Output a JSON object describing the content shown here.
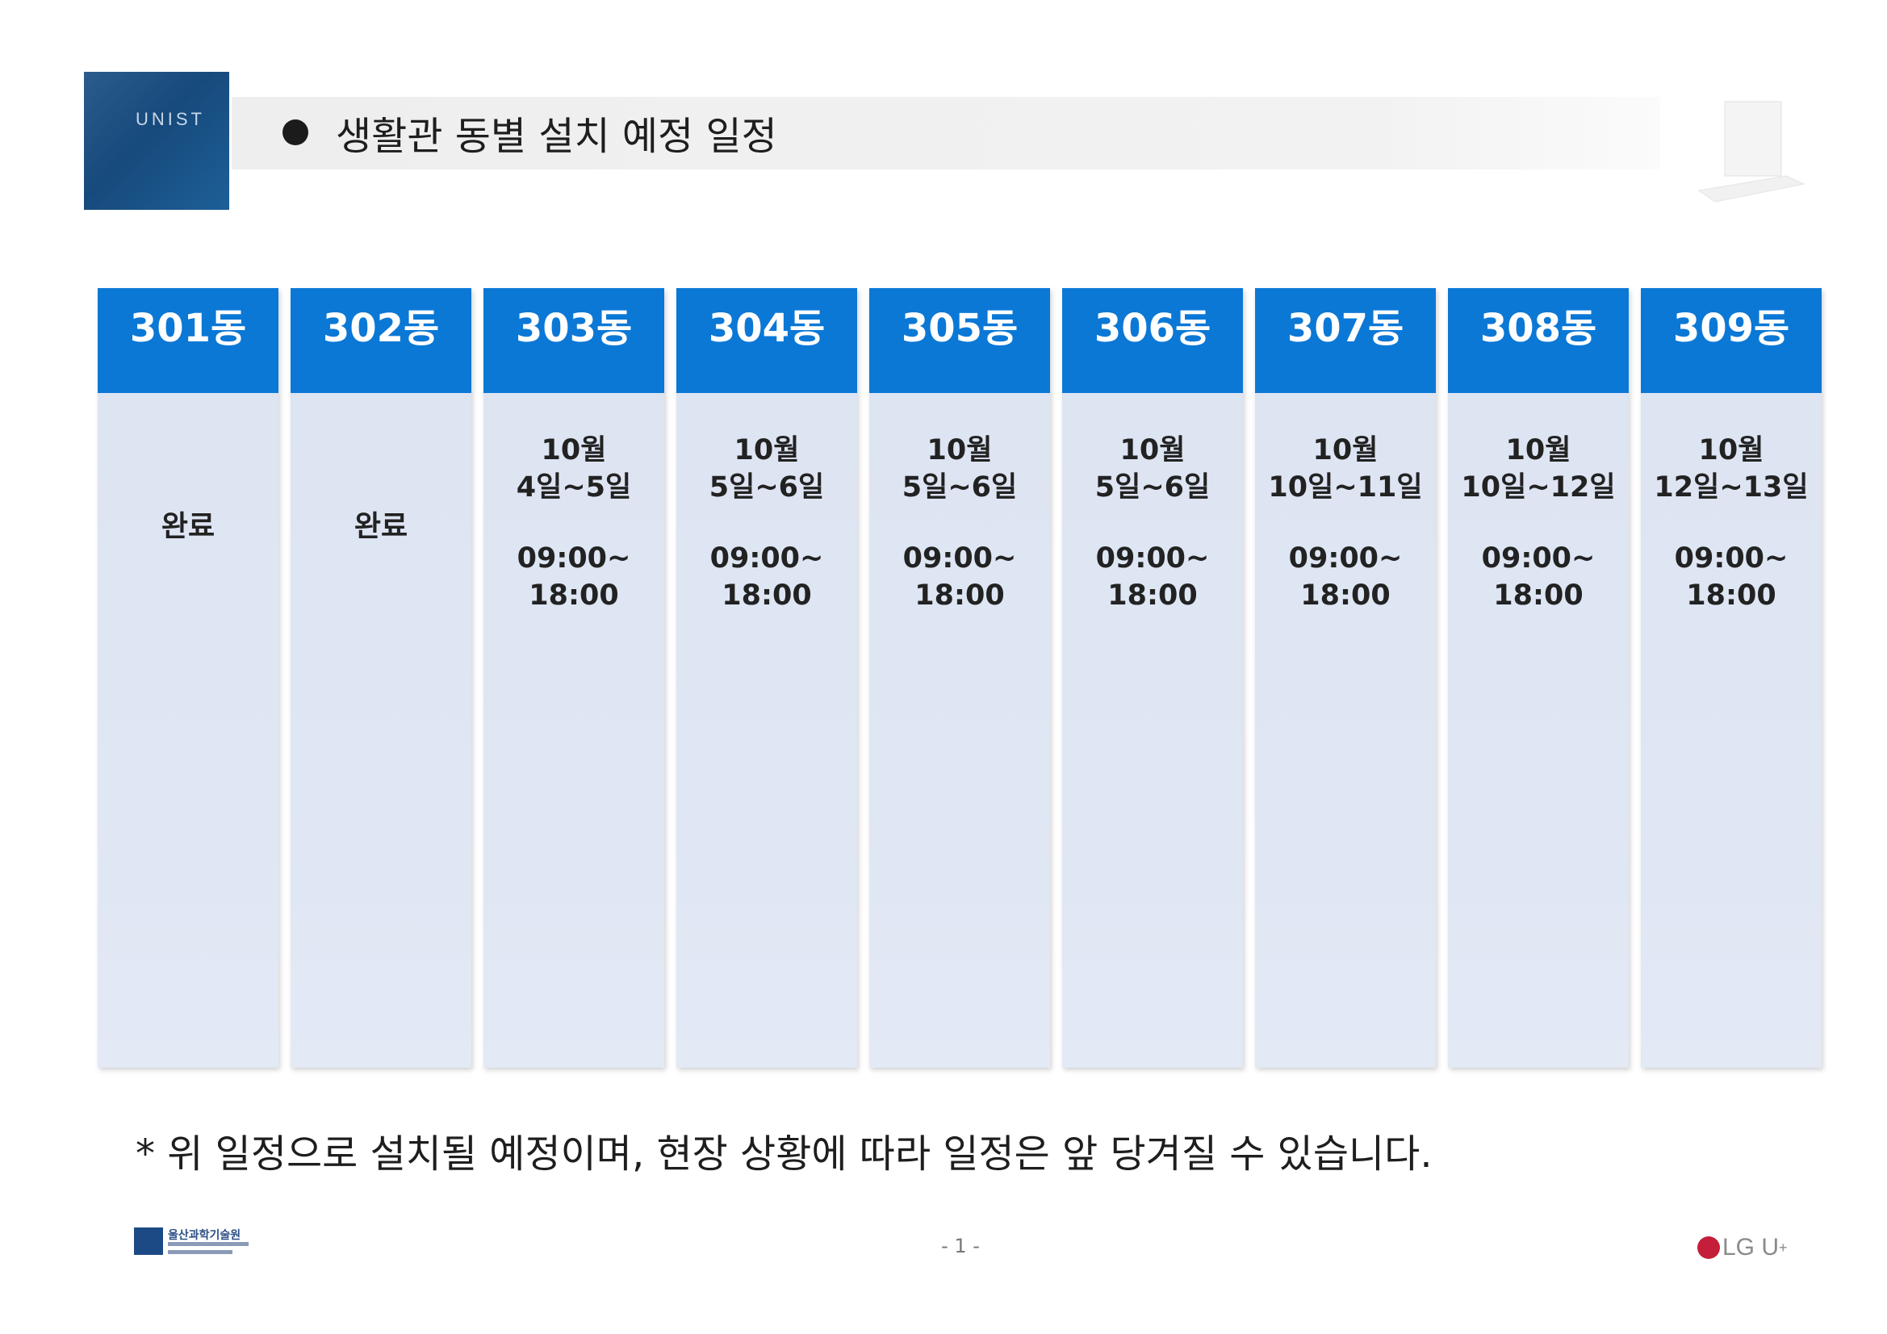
{
  "header": {
    "logo_text": "UNIST",
    "title": "생활관 동별 설치 예정 일정"
  },
  "schedule": {
    "columns": [
      {
        "building": "301동",
        "status": "완료"
      },
      {
        "building": "302동",
        "status": "완료"
      },
      {
        "building": "303동",
        "month": "10월",
        "days": "4일~5일",
        "time_start": "09:00~",
        "time_end": "18:00"
      },
      {
        "building": "304동",
        "month": "10월",
        "days": "5일~6일",
        "time_start": "09:00~",
        "time_end": "18:00"
      },
      {
        "building": "305동",
        "month": "10월",
        "days": "5일~6일",
        "time_start": "09:00~",
        "time_end": "18:00"
      },
      {
        "building": "306동",
        "month": "10월",
        "days": "5일~6일",
        "time_start": "09:00~",
        "time_end": "18:00"
      },
      {
        "building": "307동",
        "month": "10월",
        "days": "10일~11일",
        "time_start": "09:00~",
        "time_end": "18:00"
      },
      {
        "building": "308동",
        "month": "10월",
        "days": "10일~12일",
        "time_start": "09:00~",
        "time_end": "18:00"
      },
      {
        "building": "309동",
        "month": "10월",
        "days": "12일~13일",
        "time_start": "09:00~",
        "time_end": "18:00"
      }
    ]
  },
  "note": "* 위 일정으로 설치될 예정이며, 현장 상황에 따라 일정은 앞 당겨질 수 있습니다.",
  "footer": {
    "org_logo_text": "울산과학기술원",
    "page_number": "- 1 -",
    "partner_logo": "LG U",
    "partner_logo_sup": "+"
  },
  "colors": {
    "header_blue": "#0b78d6",
    "cell_bg": "#dfe6f4",
    "logo_navy": "#1c4a85"
  }
}
